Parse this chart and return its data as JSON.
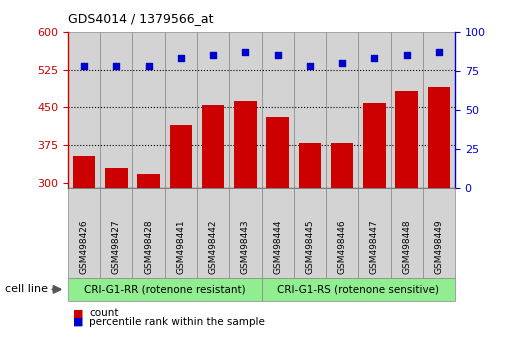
{
  "title": "GDS4014 / 1379566_at",
  "categories": [
    "GSM498426",
    "GSM498427",
    "GSM498428",
    "GSM498441",
    "GSM498442",
    "GSM498443",
    "GSM498444",
    "GSM498445",
    "GSM498446",
    "GSM498447",
    "GSM498448",
    "GSM498449"
  ],
  "bar_values": [
    352,
    330,
    318,
    415,
    455,
    462,
    430,
    378,
    378,
    458,
    483,
    490
  ],
  "scatter_values": [
    78,
    78,
    78,
    83,
    85,
    87,
    85,
    78,
    80,
    83,
    85,
    87
  ],
  "group1_label": "CRI-G1-RR (rotenone resistant)",
  "group2_label": "CRI-G1-RS (rotenone sensitive)",
  "group1_count": 6,
  "group2_count": 6,
  "bar_color": "#cc0000",
  "scatter_color": "#0000cc",
  "group_bg": "#90EE90",
  "ylim_left": [
    290,
    600
  ],
  "ylim_right": [
    0,
    100
  ],
  "yticks_left": [
    300,
    375,
    450,
    525,
    600
  ],
  "yticks_right": [
    0,
    25,
    50,
    75,
    100
  ],
  "hlines": [
    375,
    450,
    525
  ],
  "cell_line_label": "cell line",
  "legend_count": "count",
  "legend_pct": "percentile rank within the sample",
  "col_bg": "#d3d3d3",
  "col_edge": "#888888",
  "plot_bg": "#ffffff"
}
